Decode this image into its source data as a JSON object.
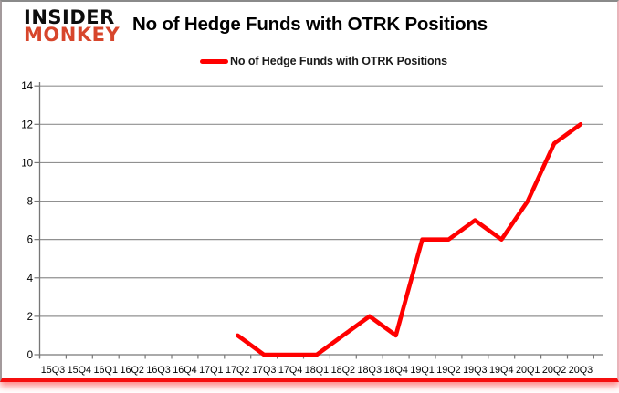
{
  "brand": {
    "line1": "INSIDER",
    "line2": "MONKEY"
  },
  "title": "No of Hedge Funds with OTRK Positions",
  "legend": {
    "label": "No of Hedge Funds with OTRK Positions",
    "color": "#ff0000"
  },
  "colors": {
    "series": "#ff0000",
    "gridline": "#909090",
    "axis": "#777777",
    "bottom_border": "#f50f0f",
    "brand_accent": "#d7462c"
  },
  "chart_data": {
    "type": "line",
    "title": "No of Hedge Funds with OTRK Positions",
    "xlabel": "",
    "ylabel": "",
    "categories": [
      "15Q3",
      "15Q4",
      "16Q1",
      "16Q2",
      "16Q3",
      "16Q4",
      "17Q1",
      "17Q2",
      "17Q3",
      "17Q4",
      "18Q1",
      "18Q2",
      "18Q3",
      "18Q4",
      "19Q1",
      "19Q2",
      "19Q3",
      "19Q4",
      "20Q1",
      "20Q2",
      "20Q3"
    ],
    "series": [
      {
        "name": "No of Hedge Funds with OTRK Positions",
        "color": "#ff0000",
        "values": [
          null,
          null,
          null,
          null,
          null,
          null,
          null,
          1,
          0,
          0,
          0,
          1,
          2,
          1,
          6,
          6,
          7,
          6,
          8,
          11,
          12
        ]
      }
    ],
    "ylim": [
      0,
      14
    ],
    "yticks": [
      0,
      2,
      4,
      6,
      8,
      10,
      12,
      14
    ],
    "grid": true,
    "legend_position": "top-center"
  }
}
